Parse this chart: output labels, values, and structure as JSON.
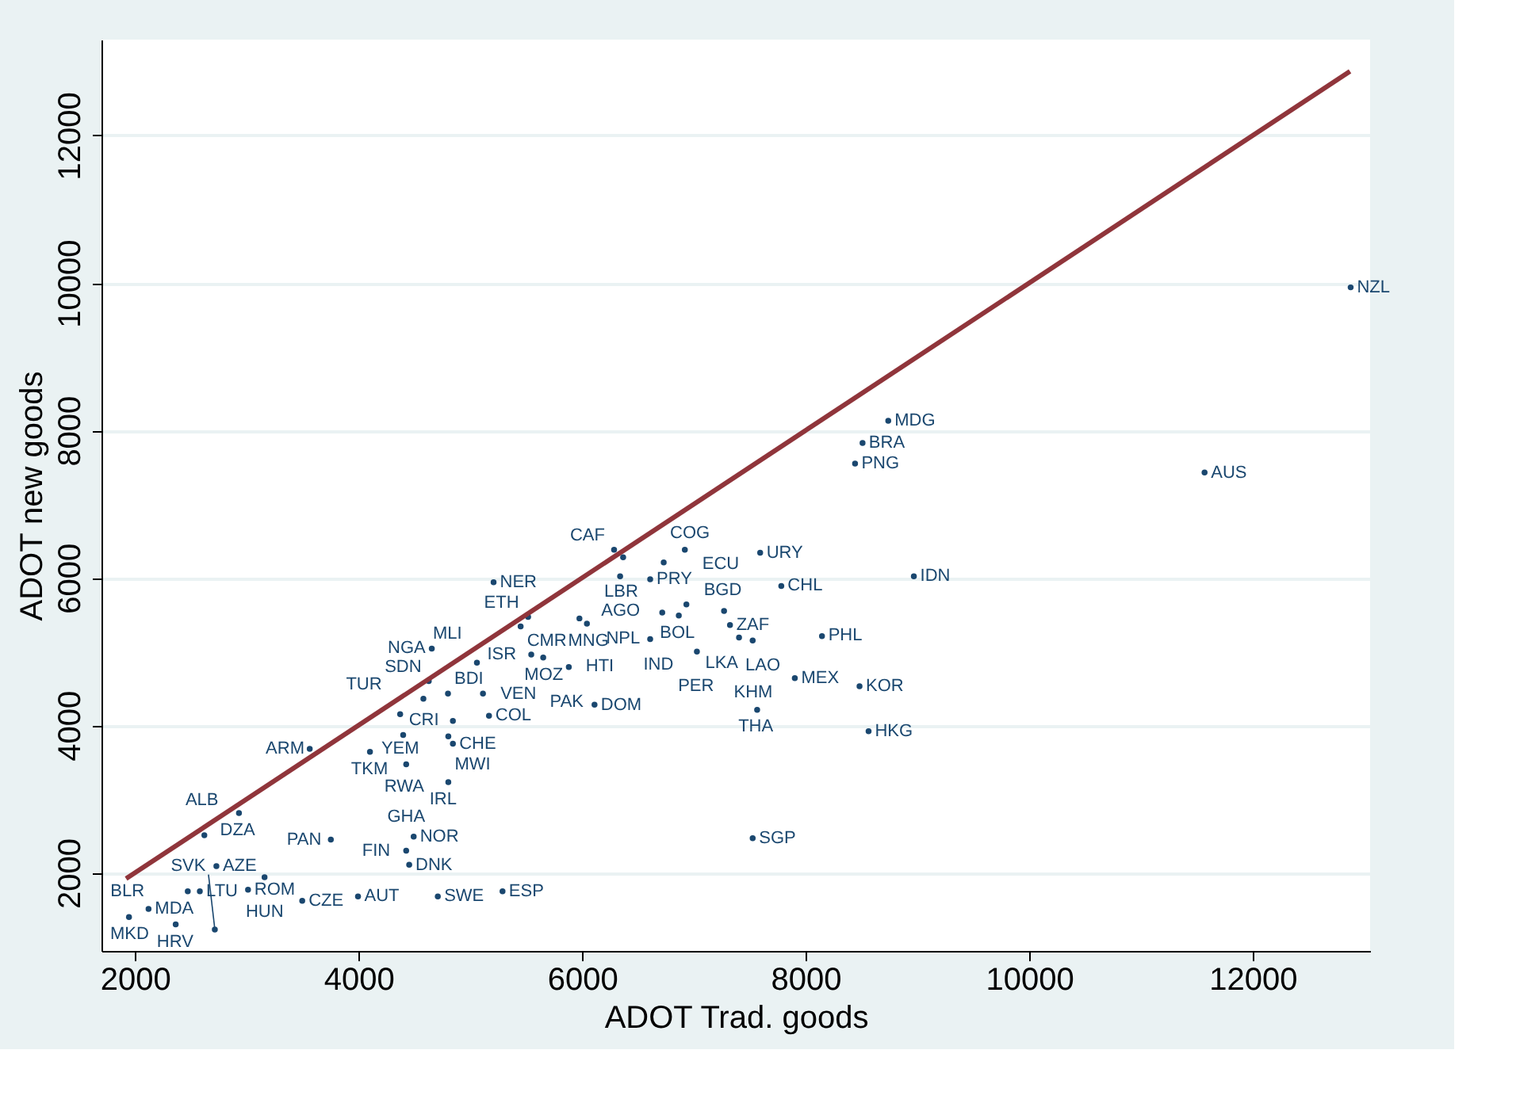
{
  "chart_data": {
    "type": "scatter",
    "xlabel": "ADOT Trad. goods",
    "ylabel": "ADOT new goods",
    "xlim": [
      1700,
      13050
    ],
    "ylim": [
      940,
      13300
    ],
    "xticks": [
      2000,
      4000,
      6000,
      8000,
      10000,
      12000
    ],
    "yticks": [
      2000,
      4000,
      6000,
      8000,
      10000,
      12000
    ],
    "grid": "y",
    "marker": "circle",
    "series": [
      {
        "color": "#1a476f",
        "x": [
          5208,
          4655,
          5059,
          4628,
          4580,
          4800,
          5113,
          4372,
          4844,
          5167,
          4399,
          4803,
          4844,
          3563,
          4102,
          4426,
          4803,
          2930,
          3752,
          4493,
          4426,
          4453,
          2620,
          2728,
          3159,
          3011,
          2472,
          2580,
          3496,
          3995,
          4709,
          5288,
          2121,
          1946,
          2364,
          2714,
          6286,
          6919,
          6367,
          6730,
          6340,
          6609,
          7593,
          7782,
          8968,
          6933,
          6717,
          6865,
          7270,
          7323,
          6609,
          7027,
          7404,
          7526,
          8146,
          6043,
          5450,
          5517,
          5976,
          5545,
          5652,
          5881,
          6111,
          7566,
          7903,
          8482,
          8739,
          8509,
          8442,
          11569,
          8563,
          7526,
          12876
        ],
        "values": [
          5940,
          5040,
          4850,
          4600,
          4360,
          4430,
          4430,
          4150,
          4060,
          4130,
          3870,
          3850,
          3750,
          3680,
          3640,
          3470,
          3230,
          2810,
          2450,
          2490,
          2300,
          2110,
          2510,
          2090,
          1940,
          1770,
          1750,
          1750,
          1620,
          1680,
          1680,
          1750,
          1510,
          1400,
          1300,
          1230,
          6380,
          6380,
          6280,
          6210,
          6020,
          5980,
          6340,
          5890,
          6020,
          5640,
          5530,
          5490,
          5550,
          5360,
          5170,
          5000,
          5190,
          5150,
          5210,
          5380,
          5340,
          5470,
          5450,
          4960,
          4920,
          4790,
          4280,
          4210,
          4640,
          4530,
          8130,
          7830,
          7550,
          7430,
          3920,
          2470,
          9940
        ]
      },
      {
        "type": "line",
        "marker": "none",
        "color": "#90353b",
        "x": [
          1920,
          12870
        ],
        "values": [
          1920,
          12870
        ]
      }
    ],
    "annotations": [
      {
        "text": "NER",
        "x": 5208,
        "y": 5936
      },
      {
        "text": "NGA",
        "x": 4655,
        "y": 5043
      },
      {
        "text": "MLI",
        "x": 5059,
        "y": 4851
      },
      {
        "text": "SDN",
        "x": 4628,
        "y": 4596
      },
      {
        "text": "TUR",
        "x": 4580,
        "y": 4362
      },
      {
        "text": "BDI",
        "x": 4800,
        "y": 4430
      },
      {
        "text": "VEN",
        "x": 5113,
        "y": 4426
      },
      {
        "text": "YEM",
        "x": 4372,
        "y": 4149
      },
      {
        "text": "CRI",
        "x": 4844,
        "y": 4064
      },
      {
        "text": "COL",
        "x": 5167,
        "y": 4128
      },
      {
        "text": "RWA",
        "x": 4399,
        "y": 3872
      },
      {
        "text": "MWI",
        "x": 4803,
        "y": 3851
      },
      {
        "text": "CHE",
        "x": 4844,
        "y": 3745
      },
      {
        "text": "ARM",
        "x": 3563,
        "y": 3681
      },
      {
        "text": "TKM",
        "x": 4102,
        "y": 3638
      },
      {
        "text": "GHA",
        "x": 4426,
        "y": 3468
      },
      {
        "text": "IRL",
        "x": 4803,
        "y": 3234
      },
      {
        "text": "DZA",
        "x": 2930,
        "y": 2809
      },
      {
        "text": "PAN",
        "x": 3752,
        "y": 2447
      },
      {
        "text": "NOR",
        "x": 4493,
        "y": 2489
      },
      {
        "text": "FIN",
        "x": 4426,
        "y": 2298
      },
      {
        "text": "DNK",
        "x": 4453,
        "y": 2106
      },
      {
        "text": "ALB",
        "x": 2620,
        "y": 2511
      },
      {
        "text": "AZE",
        "x": 2728,
        "y": 2085
      },
      {
        "text": "HUN",
        "x": 3159,
        "y": 1936
      },
      {
        "text": "ROM",
        "x": 3011,
        "y": 1766
      },
      {
        "text": "BLR",
        "x": 2472,
        "y": 1745
      },
      {
        "text": "LTU",
        "x": 2580,
        "y": 1745
      },
      {
        "text": "CZE",
        "x": 3496,
        "y": 1617
      },
      {
        "text": "AUT",
        "x": 3995,
        "y": 1681
      },
      {
        "text": "SWE",
        "x": 4709,
        "y": 1681
      },
      {
        "text": "ESP",
        "x": 5288,
        "y": 1745
      },
      {
        "text": "MDA",
        "x": 2121,
        "y": 1511
      },
      {
        "text": "MKD",
        "x": 1946,
        "y": 1404
      },
      {
        "text": "HRV",
        "x": 2364,
        "y": 1298
      },
      {
        "text": "SVK",
        "x": 2714,
        "y": 1234
      },
      {
        "text": "CAF",
        "x": 6286,
        "y": 6383
      },
      {
        "text": "ECU",
        "x": 6919,
        "y": 6383
      },
      {
        "text": "LBR",
        "x": 6367,
        "y": 6277
      },
      {
        "text": "COG",
        "x": 6730,
        "y": 6213
      },
      {
        "text": "AGO",
        "x": 6340,
        "y": 6021
      },
      {
        "text": "PRY",
        "x": 6609,
        "y": 5979
      },
      {
        "text": "URY",
        "x": 7593,
        "y": 6340
      },
      {
        "text": "CHL",
        "x": 7782,
        "y": 5894
      },
      {
        "text": "IDN",
        "x": 8968,
        "y": 6021
      },
      {
        "text": "BGD",
        "x": 6933,
        "y": 5638
      },
      {
        "text": "IND",
        "x": 6717,
        "y": 5532
      },
      {
        "text": "BOL",
        "x": 6865,
        "y": 5489
      },
      {
        "text": "LKA",
        "x": 7270,
        "y": 5553
      },
      {
        "text": "ZAF",
        "x": 7323,
        "y": 5362
      },
      {
        "text": "NPL",
        "x": 6609,
        "y": 5170
      },
      {
        "text": "PER",
        "x": 7027,
        "y": 5000
      },
      {
        "text": "LAO",
        "x": 7404,
        "y": 5191
      },
      {
        "text": "KHM",
        "x": 7526,
        "y": 5149
      },
      {
        "text": "PHL",
        "x": 8146,
        "y": 5213
      },
      {
        "text": "MNG",
        "x": 6043,
        "y": 5383
      },
      {
        "text": "CMR",
        "x": 5450,
        "y": 5340
      },
      {
        "text": "ETH",
        "x": 5517,
        "y": 5468
      },
      {
        "text": "HTI",
        "x": 5976,
        "y": 5447
      },
      {
        "text": "ISR",
        "x": 5545,
        "y": 4957
      },
      {
        "text": "MOZ",
        "x": 5652,
        "y": 4915
      },
      {
        "text": "PAK",
        "x": 5881,
        "y": 4787
      },
      {
        "text": "DOM",
        "x": 6111,
        "y": 4277
      },
      {
        "text": "THA",
        "x": 7566,
        "y": 4213
      },
      {
        "text": "MEX",
        "x": 7903,
        "y": 4638
      },
      {
        "text": "KOR",
        "x": 8482,
        "y": 4532
      },
      {
        "text": "MDG",
        "x": 8739,
        "y": 8128
      },
      {
        "text": "BRA",
        "x": 8509,
        "y": 7830
      },
      {
        "text": "PNG",
        "x": 8442,
        "y": 7553
      },
      {
        "text": "AUS",
        "x": 11569,
        "y": 7426
      },
      {
        "text": "HKG",
        "x": 8563,
        "y": 3915
      },
      {
        "text": "SGP",
        "x": 7526,
        "y": 2468
      },
      {
        "text": "NZL",
        "x": 12876,
        "y": 9936
      }
    ]
  }
}
